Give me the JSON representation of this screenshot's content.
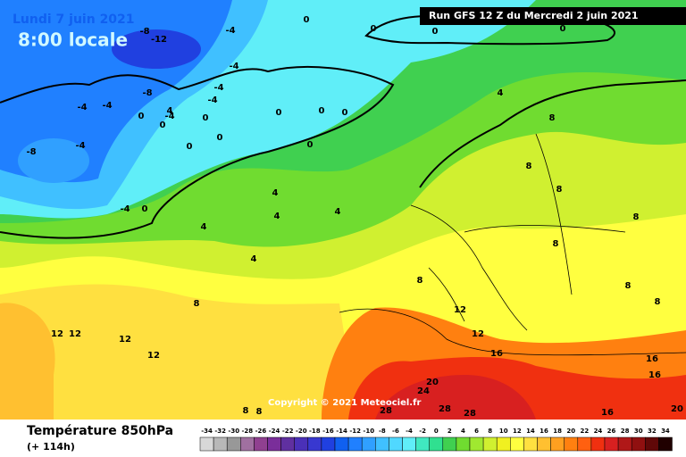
{
  "header": {
    "valid_time": "Lundi 7 juin 2021",
    "local_time": "8:00 locale",
    "run": "Run GFS 12 Z du Mercredi 2 juin 2021"
  },
  "map": {
    "copyright": "Copyright © 2021 Meteociel.fr",
    "contour_labels": [
      0,
      0,
      0,
      0,
      -8,
      -12,
      -4,
      -4,
      -4,
      -4,
      -8,
      -4,
      -4,
      0,
      4,
      0,
      0,
      0,
      0,
      0,
      0,
      0,
      0,
      -8,
      -4,
      -4,
      0,
      -4,
      4,
      4,
      4,
      4,
      4,
      4,
      8,
      8,
      8,
      8,
      8,
      8,
      8,
      8,
      8,
      12,
      12,
      12,
      12,
      12,
      12,
      16,
      16,
      16,
      20,
      24,
      28,
      28,
      28,
      16,
      20,
      8,
      8
    ]
  },
  "footer": {
    "title": "Température 850hPa",
    "lead": "(+ 114h)",
    "scale": {
      "values": [
        -34,
        -32,
        -30,
        -28,
        -26,
        -24,
        -22,
        -20,
        -18,
        -16,
        -14,
        -12,
        -10,
        -8,
        -6,
        -4,
        -2,
        0,
        2,
        4,
        6,
        8,
        10,
        12,
        14,
        16,
        18,
        20,
        22,
        24,
        26,
        28,
        30,
        32,
        34
      ],
      "colors": [
        "#d8d8d8",
        "#b8b8b8",
        "#989898",
        "#a070a0",
        "#904090",
        "#7a2e9a",
        "#6030a0",
        "#4a30b8",
        "#3838d0",
        "#2040e0",
        "#1060f0",
        "#2080ff",
        "#30a0ff",
        "#40c0ff",
        "#50d8ff",
        "#60eef8",
        "#40e8c0",
        "#30e090",
        "#40d050",
        "#70dc30",
        "#a0e830",
        "#d0f030",
        "#f0f020",
        "#ffff40",
        "#ffe040",
        "#ffc030",
        "#ffa020",
        "#ff8010",
        "#ff6010",
        "#f03010",
        "#d82020",
        "#b01818",
        "#901010",
        "#600808",
        "#200000"
      ]
    }
  }
}
